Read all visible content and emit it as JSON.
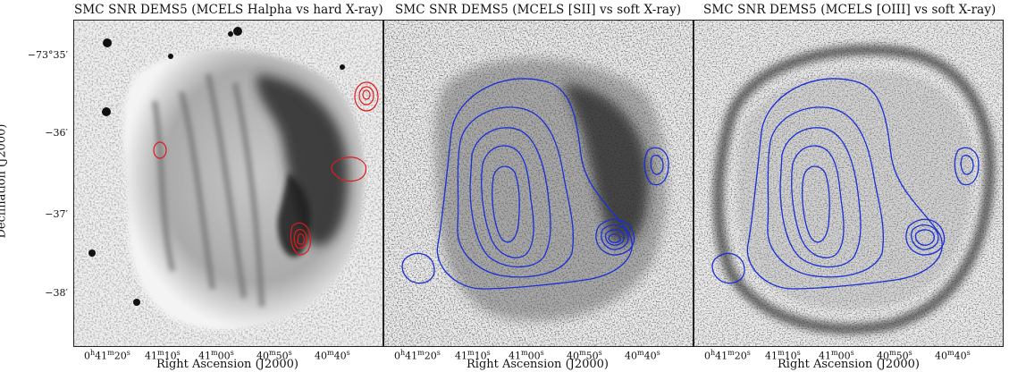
{
  "panels": [
    {
      "title": "SMC SNR DEMS5 (MCELS Halpha vs hard X-ray)",
      "contour_color": "#e21a1a"
    },
    {
      "title": "SMC SNR DEMS5 (MCELS [SII] vs soft X-ray)",
      "contour_color": "#1a2fd6"
    },
    {
      "title": "SMC SNR DEMS5 (MCELS [OIII] vs soft X-ray)",
      "contour_color": "#1a2fd6"
    }
  ],
  "axes": {
    "ylabel": "Declination (J2000)",
    "xlabel": "Right Ascension (J2000)",
    "yticks": [
      "−73°35′",
      "−36′",
      "−37′",
      "−38′"
    ],
    "xticks": [
      {
        "h": "0",
        "m": "41",
        "s": "20",
        "show_h": true
      },
      {
        "h": "",
        "m": "41",
        "s": "10",
        "show_h": false
      },
      {
        "h": "",
        "m": "41",
        "s": "00",
        "show_h": false
      },
      {
        "h": "",
        "m": "40",
        "s": "50",
        "show_h": false
      },
      {
        "h": "",
        "m": "40",
        "s": "40",
        "show_h": false
      }
    ]
  }
}
